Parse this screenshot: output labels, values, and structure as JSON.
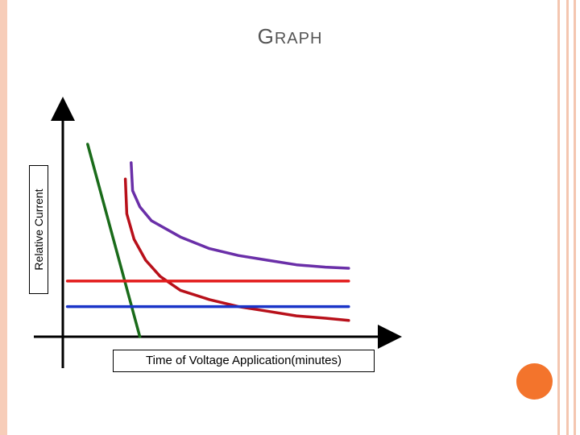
{
  "slide": {
    "title_first": "G",
    "title_rest": "RAPH",
    "colors": {
      "border": "#f7cdb9",
      "accent_dot": "#f3742c"
    }
  },
  "chart_data": {
    "type": "line",
    "title": "GRAPH",
    "xlabel": "Time of Voltage Application(minutes)",
    "ylabel": "Relative Current",
    "xlim": [
      0,
      10
    ],
    "ylim": [
      0,
      10
    ],
    "grid": false,
    "legend": "none",
    "ticks": "none",
    "series": [
      {
        "color": "#1a6b1a",
        "x": [
          0.8,
          2.6
        ],
        "y": [
          8.3,
          0
        ]
      },
      {
        "color": "#6a2fa8",
        "x": [
          2.3,
          2.35,
          2.6,
          3,
          4,
          5,
          6,
          7,
          8,
          9,
          9.8
        ],
        "y": [
          7.5,
          6.3,
          5.6,
          5.0,
          4.3,
          3.8,
          3.5,
          3.3,
          3.1,
          3.0,
          2.95
        ]
      },
      {
        "color": "#b8101a",
        "x": [
          2.1,
          2.15,
          2.4,
          2.8,
          3.3,
          4,
          5,
          6,
          7,
          8,
          9,
          9.8
        ],
        "y": [
          6.8,
          5.3,
          4.2,
          3.3,
          2.6,
          2.0,
          1.6,
          1.3,
          1.1,
          0.9,
          0.8,
          0.7
        ]
      },
      {
        "color": "#e31b1b",
        "x": [
          0.1,
          9.8
        ],
        "y": [
          2.4,
          2.4
        ]
      },
      {
        "color": "#1a34c8",
        "x": [
          0.1,
          9.8
        ],
        "y": [
          1.3,
          1.3
        ]
      }
    ]
  }
}
